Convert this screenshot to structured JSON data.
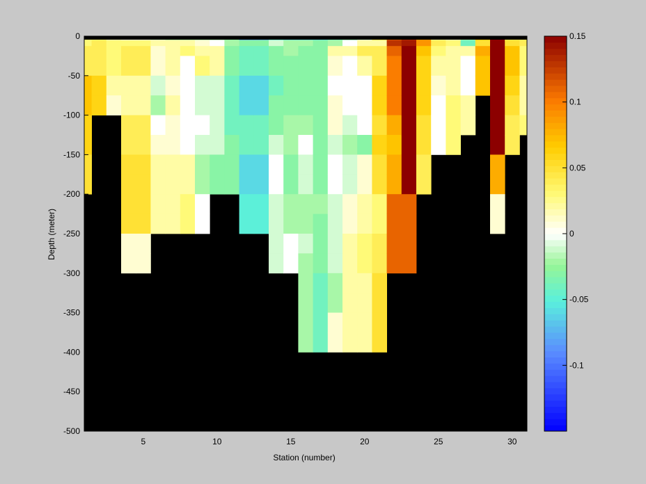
{
  "chart_data": {
    "type": "heatmap",
    "xlabel": "Station (number)",
    "ylabel": "Depth (meter)",
    "xlim": [
      1,
      31
    ],
    "ylim": [
      -500,
      0
    ],
    "xticks": [
      5,
      10,
      15,
      20,
      25,
      30
    ],
    "yticks": [
      0,
      -50,
      -100,
      -150,
      -200,
      -250,
      -300,
      -350,
      -400,
      -450,
      -500
    ],
    "colorbar": {
      "range": [
        -0.15,
        0.15
      ],
      "ticks": [
        0.15,
        0.1,
        0.05,
        0,
        -0.05,
        -0.1
      ],
      "colormap": "jet-like"
    },
    "colors": {
      "background": "#c8c8c8",
      "no_data": "#000000",
      "top_strip": "#000000"
    },
    "depth_bins": [
      [
        0,
        -5
      ],
      [
        -5,
        -12.5
      ],
      [
        -12.5,
        -25
      ],
      [
        -25,
        -50
      ],
      [
        -50,
        -75
      ],
      [
        -75,
        -100
      ],
      [
        -100,
        -125
      ],
      [
        -125,
        -150
      ],
      [
        -150,
        -175
      ],
      [
        -175,
        -200
      ],
      [
        -200,
        -225
      ],
      [
        -225,
        -250
      ],
      [
        -250,
        -275
      ],
      [
        -275,
        -300
      ],
      [
        -300,
        -325
      ],
      [
        -325,
        -350
      ],
      [
        -350,
        -375
      ],
      [
        -375,
        -400
      ]
    ],
    "stations": [
      {
        "station": 1,
        "values": [
          0.03,
          0.03,
          0.04,
          0.04,
          0.07,
          0.07,
          0.06,
          0.06,
          0.05,
          0.05
        ]
      },
      {
        "station": 2,
        "values": [
          0.03,
          0.04,
          0.04,
          0.04,
          0.06,
          0.06
        ]
      },
      {
        "station": 3,
        "values": [
          0.01,
          0.03,
          0.03,
          0.03,
          0.02,
          0.01
        ]
      },
      {
        "station": 4,
        "values": [
          0.0,
          0.03,
          0.04,
          0.04,
          0.02,
          0.02,
          0.04,
          0.04,
          0.05,
          0.05,
          0.05,
          0.05,
          0.01,
          0.01
        ]
      },
      {
        "station": 5,
        "values": [
          0.0,
          0.03,
          0.04,
          0.04,
          0.02,
          0.02,
          0.04,
          0.04,
          0.05,
          0.05,
          0.05,
          0.05,
          0.01,
          0.01
        ]
      },
      {
        "station": 6,
        "values": [
          -0.01,
          0.02,
          0.01,
          0.01,
          -0.01,
          -0.02,
          0.0,
          0.01,
          0.02,
          0.02,
          0.02,
          0.02
        ]
      },
      {
        "station": 7,
        "values": [
          -0.02,
          0.02,
          0.02,
          0.02,
          0.01,
          0.02,
          0.01,
          0.01,
          0.02,
          0.02,
          0.02,
          0.02
        ]
      },
      {
        "station": 8,
        "values": [
          -0.02,
          0.02,
          0.03,
          0.0,
          0.0,
          0.0,
          0.0,
          0.0,
          0.02,
          0.02,
          0.03,
          0.03
        ]
      },
      {
        "station": 9,
        "values": [
          -0.02,
          0.01,
          0.02,
          0.03,
          -0.01,
          -0.01,
          0.0,
          -0.01,
          -0.02,
          -0.02,
          0.0,
          0.0
        ]
      },
      {
        "station": 10,
        "values": [
          -0.02,
          0.0,
          0.02,
          0.02,
          -0.01,
          -0.01,
          -0.01,
          -0.01,
          -0.03,
          -0.03
        ]
      },
      {
        "station": 11,
        "values": [
          -0.03,
          -0.02,
          -0.03,
          -0.03,
          -0.04,
          -0.04,
          -0.04,
          -0.03,
          -0.03,
          -0.03
        ]
      },
      {
        "station": 12,
        "values": [
          -0.08,
          -0.03,
          -0.04,
          -0.04,
          -0.06,
          -0.06,
          -0.04,
          -0.04,
          -0.06,
          -0.06,
          -0.05,
          -0.05
        ]
      },
      {
        "station": 13,
        "values": [
          -0.08,
          -0.03,
          -0.04,
          -0.04,
          -0.06,
          -0.06,
          -0.04,
          -0.04,
          -0.06,
          -0.06,
          -0.05,
          -0.05
        ]
      },
      {
        "station": 14,
        "values": [
          -0.05,
          -0.01,
          -0.03,
          -0.03,
          -0.04,
          -0.03,
          -0.03,
          -0.01,
          0.0,
          0.0,
          -0.01,
          -0.01,
          -0.01,
          -0.01
        ]
      },
      {
        "station": 15,
        "values": [
          -0.06,
          -0.02,
          -0.02,
          -0.03,
          -0.03,
          -0.03,
          -0.02,
          -0.02,
          -0.03,
          -0.03,
          -0.02,
          -0.02,
          0.0,
          0.0
        ]
      },
      {
        "station": 16,
        "values": [
          -0.06,
          -0.02,
          -0.03,
          -0.03,
          -0.03,
          -0.03,
          -0.02,
          0.0,
          -0.01,
          -0.01,
          -0.02,
          -0.02,
          -0.01,
          -0.02,
          -0.02,
          -0.02,
          -0.02,
          -0.02
        ]
      },
      {
        "station": 17,
        "values": [
          -0.06,
          -0.03,
          -0.03,
          -0.03,
          -0.03,
          -0.03,
          -0.03,
          -0.03,
          -0.03,
          -0.03,
          -0.02,
          -0.03,
          -0.03,
          -0.03,
          -0.04,
          -0.04,
          -0.04,
          -0.04
        ]
      },
      {
        "station": 18,
        "values": [
          -0.04,
          -0.02,
          0.02,
          0.01,
          0.0,
          0.01,
          0.01,
          -0.01,
          0.0,
          0.0,
          -0.01,
          -0.01,
          -0.01,
          -0.01,
          -0.02,
          -0.02,
          0.01,
          0.01
        ]
      },
      {
        "station": 19,
        "values": [
          -0.03,
          0.0,
          0.02,
          0.0,
          0.0,
          0.0,
          -0.01,
          -0.02,
          -0.01,
          -0.01,
          0.01,
          0.01,
          0.02,
          0.02,
          0.02,
          0.02,
          0.02,
          0.02
        ]
      },
      {
        "station": 20,
        "values": [
          -0.01,
          0.02,
          0.04,
          0.02,
          0.0,
          0.0,
          0.0,
          -0.03,
          0.01,
          0.01,
          0.02,
          0.02,
          0.03,
          0.03,
          0.02,
          0.02,
          0.02,
          0.02
        ]
      },
      {
        "station": 21,
        "values": [
          0.05,
          0.02,
          0.04,
          0.04,
          0.06,
          0.06,
          0.05,
          0.06,
          0.05,
          0.05,
          0.03,
          0.03,
          0.04,
          0.04,
          0.05,
          0.05,
          0.05,
          0.05
        ]
      },
      {
        "station": 22,
        "values": [
          0.11,
          0.13,
          0.11,
          0.1,
          0.1,
          0.1,
          0.08,
          0.07,
          0.08,
          0.08,
          0.11,
          0.11,
          0.11,
          0.11
        ]
      },
      {
        "station": 23,
        "values": [
          0.13,
          0.14,
          0.15,
          0.15,
          0.15,
          0.15,
          0.15,
          0.15,
          0.15,
          0.15,
          0.11,
          0.11,
          0.11,
          0.11
        ]
      },
      {
        "station": 24,
        "values": [
          0.09,
          0.09,
          0.07,
          0.06,
          0.06,
          0.06,
          0.05,
          0.05,
          0.04,
          0.04
        ]
      },
      {
        "station": 25,
        "values": [
          0.02,
          0.04,
          0.03,
          0.02,
          0.01,
          0.0,
          0.0,
          0.0
        ]
      },
      {
        "station": 26,
        "values": [
          0.01,
          0.03,
          0.02,
          0.02,
          0.02,
          0.03,
          0.03,
          0.03
        ]
      },
      {
        "station": 27,
        "values": [
          -0.02,
          -0.04,
          0.02,
          0.0,
          0.0,
          0.02,
          0.02
        ]
      },
      {
        "station": 28,
        "values": [
          0.07,
          0.05,
          0.08,
          0.07,
          0.07
        ]
      },
      {
        "station": 29,
        "values": [
          0.15,
          0.15,
          0.15,
          0.15,
          0.15,
          0.15,
          0.15,
          0.15,
          0.08,
          0.08,
          0.01,
          0.01
        ]
      },
      {
        "station": 30,
        "values": [
          0.04,
          0.05,
          0.07,
          0.07,
          0.06,
          0.05,
          0.04,
          0.04
        ]
      },
      {
        "station": 31,
        "values": [
          0.04,
          0.04,
          0.03,
          0.03,
          0.02,
          0.02,
          0.03
        ]
      }
    ]
  }
}
